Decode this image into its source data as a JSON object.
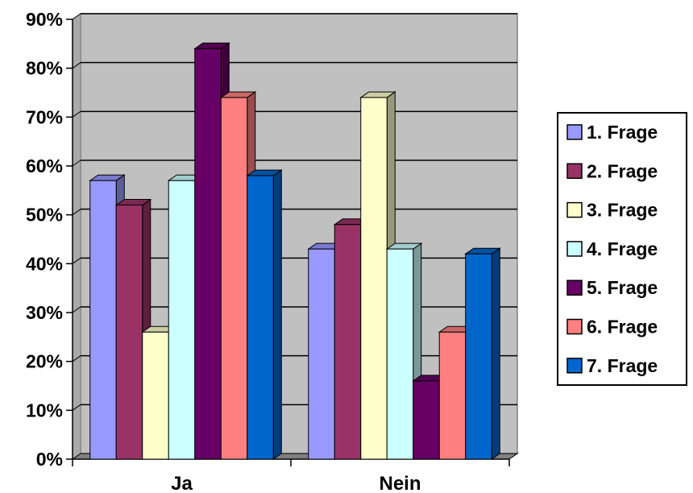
{
  "chart_data": {
    "type": "bar",
    "style": "3d-clustered-column",
    "categories": [
      "Ja",
      "Nein"
    ],
    "series": [
      {
        "name": "1. Frage",
        "values": [
          57,
          43
        ],
        "color": "#9999ff"
      },
      {
        "name": "2. Frage",
        "values": [
          52,
          48
        ],
        "color": "#993366"
      },
      {
        "name": "3. Frage",
        "values": [
          26,
          74
        ],
        "color": "#ffffcc"
      },
      {
        "name": "4. Frage",
        "values": [
          57,
          43
        ],
        "color": "#ccffff"
      },
      {
        "name": "5. Frage",
        "values": [
          84,
          16
        ],
        "color": "#660066"
      },
      {
        "name": "6. Frage",
        "values": [
          74,
          26
        ],
        "color": "#ff8080"
      },
      {
        "name": "7. Frage",
        "values": [
          58,
          42
        ],
        "color": "#0066cc"
      }
    ],
    "y_ticks": [
      "0%",
      "10%",
      "20%",
      "30%",
      "40%",
      "50%",
      "60%",
      "70%",
      "80%",
      "90%"
    ],
    "ylim": [
      0,
      90
    ],
    "grid": true,
    "legend_position": "right",
    "plot_background": "#c0c0c0"
  }
}
